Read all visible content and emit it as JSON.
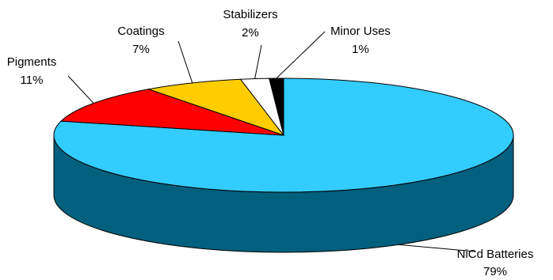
{
  "chart_data": {
    "type": "pie",
    "style": "3d",
    "slices": [
      {
        "label": "NiCd Batteries",
        "value": 79,
        "value_label": "79%",
        "color": "#33CCFF",
        "side_color": "#00607E"
      },
      {
        "label": "Pigments",
        "value": 11,
        "value_label": "11%",
        "color": "#FF0000",
        "side_color": "#990000"
      },
      {
        "label": "Coatings",
        "value": 7,
        "value_label": "7%",
        "color": "#FFCC00",
        "side_color": "#997A00"
      },
      {
        "label": "Stabilizers",
        "value": 2,
        "value_label": "2%",
        "color": "#FFFFFF",
        "side_color": "#C8C8C8"
      },
      {
        "label": "Minor Uses",
        "value": 1,
        "value_label": "1%",
        "color": "#000000",
        "side_color": "#000000"
      }
    ]
  }
}
